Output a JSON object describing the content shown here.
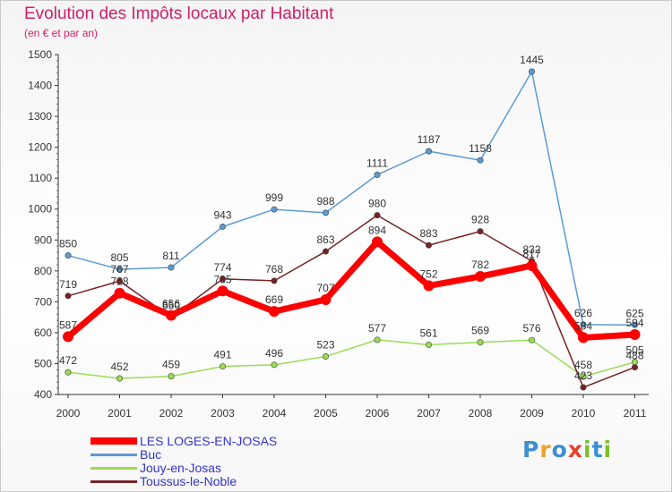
{
  "title": "Evolution des Impôts locaux par Habitant",
  "subtitle": "(en € et par an)",
  "logo_text": "Proxiti",
  "chart_data": {
    "type": "line",
    "title": "Evolution des Impôts locaux par Habitant",
    "ylabel": "(en € et par an)",
    "xlabel": "",
    "categories": [
      "2000",
      "2001",
      "2002",
      "2003",
      "2004",
      "2005",
      "2006",
      "2007",
      "2008",
      "2009",
      "2010",
      "2011"
    ],
    "ylim": [
      400,
      1500
    ],
    "yticks": [
      400,
      500,
      600,
      700,
      800,
      900,
      1000,
      1100,
      1200,
      1300,
      1400,
      1500
    ],
    "grid": false,
    "legend_position": "bottom-left",
    "series": [
      {
        "name": "LES LOGES-EN-JOSAS",
        "color": "#ff0000",
        "values": [
          587,
          728,
          656,
          735,
          669,
          707,
          894,
          752,
          782,
          817,
          584,
          594
        ]
      },
      {
        "name": "Buc",
        "color": "#5b9bd5",
        "values": [
          850,
          805,
          811,
          943,
          999,
          988,
          1111,
          1187,
          1158,
          1445,
          626,
          625
        ]
      },
      {
        "name": "Jouy-en-Josas",
        "color": "#99dd55",
        "values": [
          472,
          452,
          459,
          491,
          496,
          523,
          577,
          561,
          569,
          576,
          458,
          505
        ]
      },
      {
        "name": "Toussus-le-Noble",
        "color": "#772222",
        "values": [
          719,
          767,
          650,
          774,
          768,
          863,
          980,
          883,
          928,
          832,
          423,
          488
        ]
      }
    ]
  }
}
